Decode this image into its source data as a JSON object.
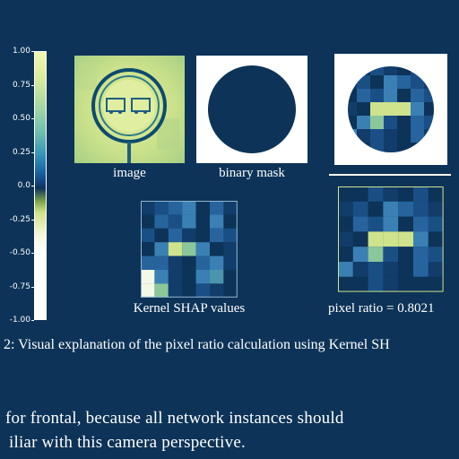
{
  "colorbar": {
    "ticks": [
      "1.00",
      "0.75",
      "0.50",
      "0.25",
      "0.0",
      "-0.25",
      "-0.50",
      "-0.75",
      "-1.00"
    ],
    "colormap": "YlGnBu-diverging"
  },
  "panels": {
    "image": {
      "caption": "image"
    },
    "binary_mask": {
      "caption": "binary mask"
    },
    "kernel_shap": {
      "caption": "Kernel SHAP values"
    },
    "pixel_ratio": {
      "caption": "pixel ratio = 0.8021"
    }
  },
  "figure_caption": "2: Visual explanation of the pixel ratio calculation using Kernel SH",
  "body": {
    "line1": "for frontal, because all network instances should",
    "line2": "iliar with this camera perspective."
  },
  "colors": {
    "background": "#0d3358",
    "text": "#ffffff",
    "high": "#f2f7b0",
    "low": "#0d3358"
  }
}
